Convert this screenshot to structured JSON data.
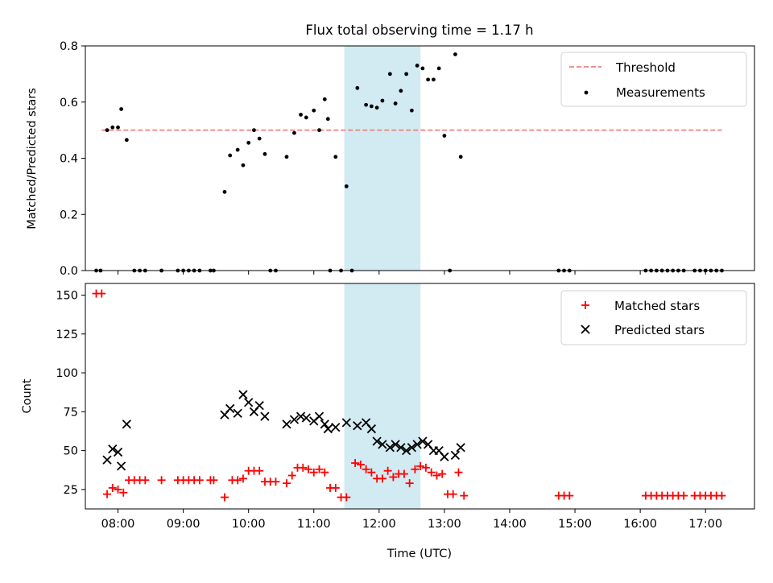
{
  "title": "Flux total observing time = 1.17 h",
  "colors": {
    "threshold": "#f08080",
    "measurement": "#000000",
    "matched": "#ff0000",
    "predicted": "#000000",
    "span": "#add8e6"
  },
  "chart_data": [
    {
      "type": "scatter",
      "ylabel": "Matched/Predicted stars",
      "xlim": [
        "07:30",
        "17:45"
      ],
      "ylim": [
        0,
        0.8
      ],
      "yticks": [
        "0.0",
        "0.2",
        "0.4",
        "0.6",
        "0.8"
      ],
      "legend": {
        "placement": "top-right",
        "entries": [
          "Threshold",
          "Measurements"
        ]
      },
      "threshold": {
        "name": "Threshold",
        "value": 0.5,
        "x_start": "07:45",
        "x_end": "17:15"
      },
      "highlight_span": [
        "11:28",
        "12:38"
      ],
      "series": [
        {
          "name": "Measurements",
          "marker": "dot",
          "points": [
            [
              "07:40",
              0
            ],
            [
              "07:44",
              0
            ],
            [
              "07:50",
              0.5
            ],
            [
              "07:55",
              0.51
            ],
            [
              "08:00",
              0.51
            ],
            [
              "08:03",
              0.575
            ],
            [
              "08:08",
              0.465
            ],
            [
              "08:15",
              0
            ],
            [
              "08:20",
              0
            ],
            [
              "08:25",
              0
            ],
            [
              "08:40",
              0
            ],
            [
              "08:55",
              0
            ],
            [
              "09:00",
              0
            ],
            [
              "09:05",
              0
            ],
            [
              "09:10",
              0
            ],
            [
              "09:15",
              0
            ],
            [
              "09:25",
              0
            ],
            [
              "09:28",
              0
            ],
            [
              "09:38",
              0.28
            ],
            [
              "09:43",
              0.41
            ],
            [
              "09:50",
              0.43
            ],
            [
              "09:55",
              0.375
            ],
            [
              "10:00",
              0.455
            ],
            [
              "10:05",
              0.5
            ],
            [
              "10:10",
              0.47
            ],
            [
              "10:15",
              0.415
            ],
            [
              "10:20",
              0
            ],
            [
              "10:25",
              0
            ],
            [
              "10:35",
              0.405
            ],
            [
              "10:42",
              0.49
            ],
            [
              "10:48",
              0.555
            ],
            [
              "10:53",
              0.545
            ],
            [
              "11:00",
              0.57
            ],
            [
              "11:05",
              0.5
            ],
            [
              "11:10",
              0.61
            ],
            [
              "11:13",
              0.54
            ],
            [
              "11:20",
              0.405
            ],
            [
              "11:15",
              0
            ],
            [
              "11:25",
              0
            ],
            [
              "11:30",
              0.3
            ],
            [
              "11:35",
              0
            ],
            [
              "11:40",
              0.65
            ],
            [
              "11:48",
              0.59
            ],
            [
              "11:53",
              0.585
            ],
            [
              "11:58",
              0.58
            ],
            [
              "12:03",
              0.605
            ],
            [
              "12:10",
              0.7
            ],
            [
              "12:15",
              0.595
            ],
            [
              "12:20",
              0.64
            ],
            [
              "12:25",
              0.7
            ],
            [
              "12:30",
              0.57
            ],
            [
              "12:35",
              0.73
            ],
            [
              "12:40",
              0.72
            ],
            [
              "12:45",
              0.68
            ],
            [
              "12:50",
              0.68
            ],
            [
              "12:55",
              0.72
            ],
            [
              "13:00",
              0.48
            ],
            [
              "13:05",
              0
            ],
            [
              "13:10",
              0.77
            ],
            [
              "13:15",
              0.405
            ],
            [
              "14:45",
              0
            ],
            [
              "14:50",
              0
            ],
            [
              "14:55",
              0
            ],
            [
              "16:05",
              0
            ],
            [
              "16:10",
              0
            ],
            [
              "16:15",
              0
            ],
            [
              "16:20",
              0
            ],
            [
              "16:25",
              0
            ],
            [
              "16:30",
              0
            ],
            [
              "16:35",
              0
            ],
            [
              "16:40",
              0
            ],
            [
              "16:50",
              0
            ],
            [
              "16:55",
              0
            ],
            [
              "17:00",
              0
            ],
            [
              "17:05",
              0
            ],
            [
              "17:10",
              0
            ],
            [
              "17:15",
              0
            ]
          ]
        }
      ]
    },
    {
      "type": "scatter",
      "ylabel": "Count",
      "xlabel": "Time (UTC)",
      "xlim": [
        "07:30",
        "17:45"
      ],
      "ylim": [
        12.5,
        157.5
      ],
      "yticks": [
        "25",
        "50",
        "75",
        "100",
        "125",
        "150"
      ],
      "xticks": [
        "08:00",
        "09:00",
        "10:00",
        "11:00",
        "12:00",
        "13:00",
        "14:00",
        "15:00",
        "16:00",
        "17:00"
      ],
      "legend": {
        "placement": "top-right",
        "entries": [
          "Matched stars",
          "Predicted stars"
        ]
      },
      "highlight_span": [
        "11:28",
        "12:38"
      ],
      "series": [
        {
          "name": "Matched stars",
          "marker": "plus",
          "points": [
            [
              "07:40",
              151
            ],
            [
              "07:45",
              151
            ],
            [
              "07:50",
              22
            ],
            [
              "07:55",
              26
            ],
            [
              "08:00",
              25
            ],
            [
              "08:05",
              23
            ],
            [
              "08:10",
              31
            ],
            [
              "08:15",
              31
            ],
            [
              "08:20",
              31
            ],
            [
              "08:25",
              31
            ],
            [
              "08:40",
              31
            ],
            [
              "08:55",
              31
            ],
            [
              "09:00",
              31
            ],
            [
              "09:05",
              31
            ],
            [
              "09:10",
              31
            ],
            [
              "09:15",
              31
            ],
            [
              "09:25",
              31
            ],
            [
              "09:28",
              31
            ],
            [
              "09:38",
              20
            ],
            [
              "09:45",
              31
            ],
            [
              "09:50",
              31
            ],
            [
              "09:55",
              32
            ],
            [
              "10:00",
              37
            ],
            [
              "10:05",
              37
            ],
            [
              "10:10",
              37
            ],
            [
              "10:15",
              30
            ],
            [
              "10:20",
              30
            ],
            [
              "10:25",
              30
            ],
            [
              "10:35",
              29
            ],
            [
              "10:40",
              34
            ],
            [
              "10:45",
              39
            ],
            [
              "10:50",
              39
            ],
            [
              "10:55",
              38
            ],
            [
              "11:00",
              36
            ],
            [
              "11:05",
              38
            ],
            [
              "11:10",
              36
            ],
            [
              "11:15",
              26
            ],
            [
              "11:20",
              26
            ],
            [
              "11:25",
              20
            ],
            [
              "11:30",
              20
            ],
            [
              "11:38",
              42
            ],
            [
              "11:43",
              41
            ],
            [
              "11:48",
              38
            ],
            [
              "11:53",
              36
            ],
            [
              "11:58",
              32
            ],
            [
              "12:03",
              32
            ],
            [
              "12:08",
              37
            ],
            [
              "12:13",
              33
            ],
            [
              "12:18",
              35
            ],
            [
              "12:23",
              35
            ],
            [
              "12:28",
              29
            ],
            [
              "12:33",
              38
            ],
            [
              "12:38",
              40
            ],
            [
              "12:43",
              39
            ],
            [
              "12:48",
              36
            ],
            [
              "12:53",
              34
            ],
            [
              "12:58",
              35
            ],
            [
              "13:03",
              22
            ],
            [
              "13:08",
              22
            ],
            [
              "13:13",
              36
            ],
            [
              "13:18",
              21
            ],
            [
              "14:45",
              21
            ],
            [
              "14:50",
              21
            ],
            [
              "14:55",
              21
            ],
            [
              "16:05",
              21
            ],
            [
              "16:10",
              21
            ],
            [
              "16:15",
              21
            ],
            [
              "16:20",
              21
            ],
            [
              "16:25",
              21
            ],
            [
              "16:30",
              21
            ],
            [
              "16:35",
              21
            ],
            [
              "16:40",
              21
            ],
            [
              "16:50",
              21
            ],
            [
              "16:55",
              21
            ],
            [
              "17:00",
              21
            ],
            [
              "17:05",
              21
            ],
            [
              "17:10",
              21
            ],
            [
              "17:15",
              21
            ]
          ]
        },
        {
          "name": "Predicted stars",
          "marker": "x",
          "points": [
            [
              "07:50",
              44
            ],
            [
              "07:55",
              51
            ],
            [
              "08:00",
              49
            ],
            [
              "08:03",
              40
            ],
            [
              "08:08",
              67
            ],
            [
              "09:38",
              73
            ],
            [
              "09:43",
              77
            ],
            [
              "09:50",
              74
            ],
            [
              "09:55",
              86
            ],
            [
              "10:00",
              81
            ],
            [
              "10:05",
              75
            ],
            [
              "10:10",
              79
            ],
            [
              "10:15",
              72
            ],
            [
              "10:35",
              67
            ],
            [
              "10:42",
              70
            ],
            [
              "10:48",
              72
            ],
            [
              "10:53",
              71
            ],
            [
              "11:00",
              69
            ],
            [
              "11:05",
              72
            ],
            [
              "11:10",
              67
            ],
            [
              "11:13",
              64
            ],
            [
              "11:20",
              65
            ],
            [
              "11:30",
              68
            ],
            [
              "11:40",
              66
            ],
            [
              "11:48",
              68
            ],
            [
              "11:53",
              64
            ],
            [
              "11:58",
              56
            ],
            [
              "12:03",
              54
            ],
            [
              "12:10",
              52
            ],
            [
              "12:15",
              54
            ],
            [
              "12:20",
              52
            ],
            [
              "12:25",
              50
            ],
            [
              "12:30",
              52
            ],
            [
              "12:35",
              54
            ],
            [
              "12:40",
              56
            ],
            [
              "12:45",
              54
            ],
            [
              "12:50",
              50
            ],
            [
              "12:55",
              50
            ],
            [
              "13:00",
              46
            ],
            [
              "13:10",
              47
            ],
            [
              "13:15",
              52
            ]
          ]
        }
      ]
    }
  ]
}
